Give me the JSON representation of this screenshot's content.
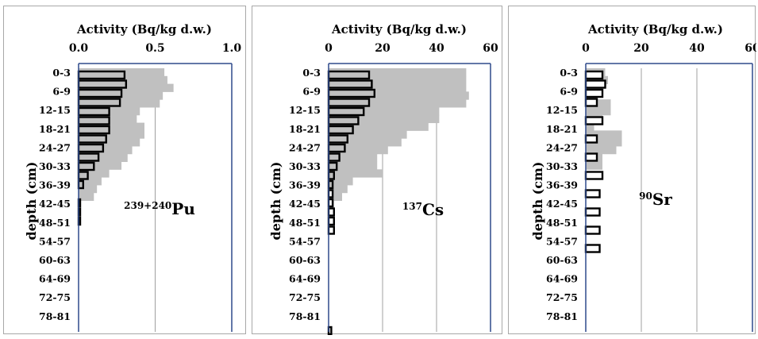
{
  "depth_ticks": [
    "0-3",
    "6-9",
    "12-15",
    "18-21",
    "24-27",
    "30-33",
    "36-39",
    "42-45",
    "48-51",
    "54-57",
    "60-63",
    "64-69",
    "72-75",
    "78-81"
  ],
  "colors": {
    "gray_fill": "#c0c0c0",
    "hollow_fill": "#ffffff",
    "bar_edge": "#000000",
    "axis": "#2f4a8c",
    "grid": "#a0a0a0"
  },
  "chart_data": [
    {
      "type": "bar",
      "orientation": "horizontal",
      "title": "Activity (Bq/kg d.w.)",
      "ylabel": "depth (cm)",
      "isotope_sup": "239+240",
      "isotope_main": "Pu",
      "xlim": [
        0,
        1.0
      ],
      "xticks": [
        "0.0",
        "0.5",
        "1.0"
      ],
      "xtick_values": [
        0,
        0.5,
        1.0
      ],
      "gray_profile": [
        0.56,
        0.58,
        0.62,
        0.55,
        0.53,
        0.4,
        0.38,
        0.43,
        0.43,
        0.4,
        0.35,
        0.32,
        0.28,
        0.2,
        0.15,
        0.12,
        0.1
      ],
      "series": [
        {
          "values": [
            0.3,
            0.31,
            0.28,
            0.27,
            0.2,
            0.2,
            0.2,
            0.18,
            0.16,
            0.13,
            0.1,
            0.06,
            0.03,
            0.0,
            0.01,
            0.01,
            0.01
          ]
        }
      ]
    },
    {
      "type": "bar",
      "orientation": "horizontal",
      "title": "Activity (Bq/kg d.w.)",
      "ylabel": "depth (cm)",
      "isotope_sup": "137",
      "isotope_main": "Cs",
      "xlim": [
        0,
        60
      ],
      "xticks": [
        "0",
        "20",
        "40",
        "60"
      ],
      "xtick_values": [
        0,
        20,
        40,
        60
      ],
      "gray_profile": [
        51,
        51,
        51,
        52,
        51,
        41,
        41,
        37,
        29,
        27,
        22,
        18,
        18,
        20,
        9,
        7,
        5,
        2,
        2,
        2
      ],
      "series": [
        {
          "values": [
            15,
            16,
            17,
            15,
            13,
            11,
            9,
            7,
            6,
            4,
            3,
            2,
            1.5,
            1.5,
            1.5,
            2,
            2,
            2,
            0,
            0,
            0,
            0,
            0,
            0,
            0,
            0,
            0,
            0,
            1
          ]
        }
      ]
    },
    {
      "type": "bar",
      "orientation": "horizontal",
      "title": "Activity (Bq/kg d.w.)",
      "ylabel": "depth (cm)",
      "isotope_sup": "90",
      "isotope_main": "Sr",
      "xlim": [
        0,
        60
      ],
      "xticks": [
        "0",
        "20",
        "40",
        "60"
      ],
      "xtick_values": [
        0,
        20,
        40,
        60
      ],
      "gray_profile": [
        7,
        8,
        6,
        4,
        9,
        9,
        6,
        3,
        13,
        13,
        11,
        6,
        6
      ],
      "series": [
        {
          "values": [
            6,
            7,
            6,
            4,
            0,
            6,
            0,
            4,
            0,
            4,
            0,
            6,
            0,
            5,
            0,
            5,
            0,
            5,
            0,
            5
          ]
        }
      ]
    }
  ]
}
